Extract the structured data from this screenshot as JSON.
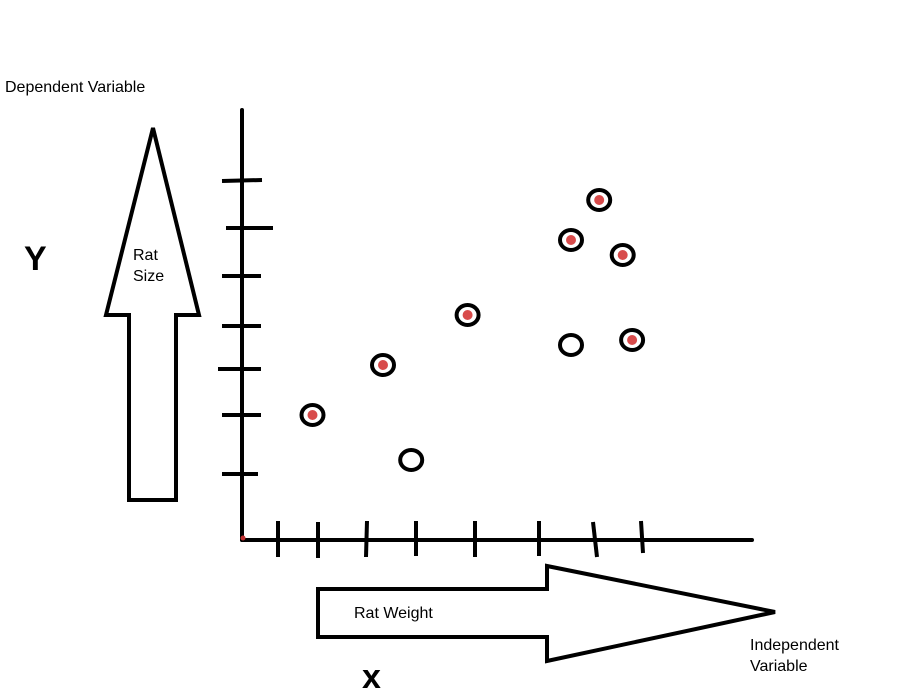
{
  "labels": {
    "dependent_variable": "Dependent Variable",
    "y_letter": "Y",
    "y_arrow_line1": "Rat",
    "y_arrow_line2": "Size",
    "x_arrow_text": "Rat Weight",
    "independent_line1": "Independent",
    "independent_line2": "Variable",
    "x_letter": "x"
  },
  "colors": {
    "ink": "#000000",
    "dot_fill": "#d12b2b",
    "background": "#ffffff"
  },
  "points": [
    {
      "x": 1.5,
      "y": 2.5,
      "filled": true
    },
    {
      "x": 3.0,
      "y": 3.5,
      "filled": true
    },
    {
      "x": 3.6,
      "y": 1.6,
      "filled": false
    },
    {
      "x": 4.8,
      "y": 4.5,
      "filled": true
    },
    {
      "x": 7.0,
      "y": 3.9,
      "filled": false
    },
    {
      "x": 7.0,
      "y": 6.0,
      "filled": true
    },
    {
      "x": 7.6,
      "y": 6.8,
      "filled": true
    },
    {
      "x": 8.1,
      "y": 5.7,
      "filled": true
    },
    {
      "x": 8.3,
      "y": 4.0,
      "filled": true
    }
  ]
}
